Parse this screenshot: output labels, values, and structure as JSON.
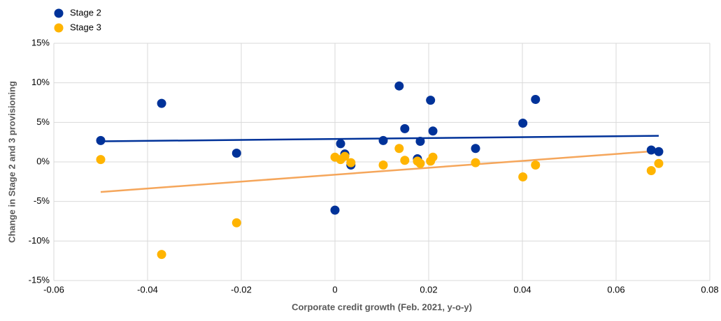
{
  "chart_data": {
    "type": "scatter",
    "x_label": "Corporate credit growth (Feb. 2021, y-o-y)",
    "y_label": "Change in Stage 2 and 3 provisioning",
    "xlim": [
      -0.06,
      0.08
    ],
    "xticks": [
      -0.06,
      -0.04,
      -0.02,
      0,
      0.02,
      0.04,
      0.06,
      0.08
    ],
    "ylim": [
      -15,
      15
    ],
    "yticks": [
      {
        "value": -15,
        "label": "-15%"
      },
      {
        "value": -10,
        "label": "-10%"
      },
      {
        "value": -5,
        "label": "-5%"
      },
      {
        "value": 0,
        "label": "0%"
      },
      {
        "value": 5,
        "label": "5%"
      },
      {
        "value": 10,
        "label": "10%"
      },
      {
        "value": 15,
        "label": "15%"
      }
    ],
    "grid": true,
    "legend": "top-left",
    "series": [
      {
        "name": "Stage 2",
        "color": "#003299",
        "trend_color": "#003299",
        "x": [
          -0.05,
          -0.037,
          -0.021,
          0.0,
          0.0012,
          0.0021,
          0.0034,
          0.0103,
          0.0137,
          0.0149,
          0.0176,
          0.0182,
          0.0204,
          0.0209,
          0.03,
          0.0401,
          0.0428,
          0.0675,
          0.0691
        ],
        "values": [
          2.7,
          7.4,
          1.1,
          -6.1,
          2.3,
          1.0,
          -0.4,
          2.7,
          9.6,
          4.2,
          0.4,
          2.6,
          7.8,
          3.9,
          1.7,
          4.9,
          7.9,
          1.5,
          1.3
        ],
        "trend": {
          "x": [
            -0.05,
            0.0691
          ],
          "values": [
            2.6,
            3.3
          ]
        }
      },
      {
        "name": "Stage 3",
        "color": "#FFB400",
        "trend_color": "#F5A65B",
        "x": [
          -0.05,
          -0.037,
          -0.021,
          0.0,
          0.0012,
          0.0021,
          0.0034,
          0.0103,
          0.0137,
          0.0149,
          0.0176,
          0.0182,
          0.0204,
          0.0209,
          0.03,
          0.0401,
          0.0428,
          0.0675,
          0.0691
        ],
        "values": [
          0.3,
          -11.7,
          -7.7,
          0.6,
          0.3,
          0.7,
          -0.1,
          -0.4,
          1.7,
          0.2,
          0.1,
          -0.2,
          0.1,
          0.6,
          -0.1,
          -1.9,
          -0.4,
          -1.1,
          -0.2
        ],
        "trend": {
          "x": [
            -0.05,
            0.0691
          ],
          "values": [
            -3.8,
            1.4
          ]
        }
      }
    ]
  }
}
